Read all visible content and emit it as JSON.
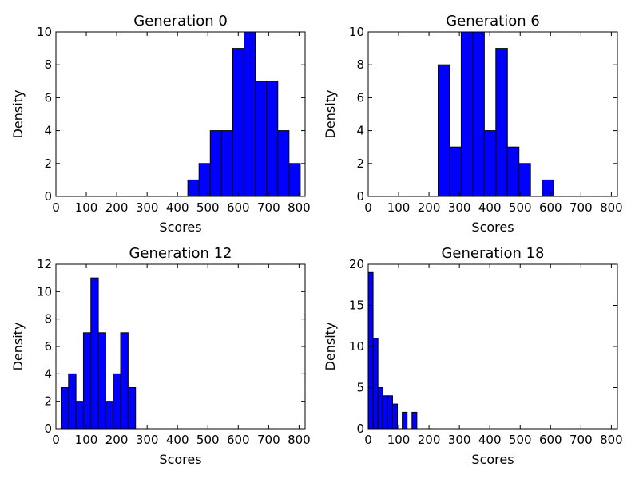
{
  "chart_data": [
    {
      "type": "bar",
      "title": "Generation 0",
      "xlabel": "Scores",
      "ylabel": "Density",
      "xlim": [
        0,
        820
      ],
      "ylim": [
        0,
        10
      ],
      "xticks": [
        0,
        100,
        200,
        300,
        400,
        500,
        600,
        700,
        800
      ],
      "yticks": [
        0,
        2,
        4,
        6,
        8,
        10
      ],
      "bin_width": 37,
      "bins": [
        {
          "x": 434,
          "value": 1
        },
        {
          "x": 471,
          "value": 2
        },
        {
          "x": 508,
          "value": 4
        },
        {
          "x": 545,
          "value": 4
        },
        {
          "x": 582,
          "value": 9
        },
        {
          "x": 619,
          "value": 10
        },
        {
          "x": 656,
          "value": 7
        },
        {
          "x": 693,
          "value": 7
        },
        {
          "x": 730,
          "value": 4
        },
        {
          "x": 767,
          "value": 2
        }
      ]
    },
    {
      "type": "bar",
      "title": "Generation 6",
      "xlabel": "Scores",
      "ylabel": "Density",
      "xlim": [
        0,
        820
      ],
      "ylim": [
        0,
        10
      ],
      "xticks": [
        0,
        100,
        200,
        300,
        400,
        500,
        600,
        700,
        800
      ],
      "yticks": [
        0,
        2,
        4,
        6,
        8,
        10
      ],
      "bin_width": 38,
      "bins": [
        {
          "x": 230,
          "value": 8
        },
        {
          "x": 268,
          "value": 3
        },
        {
          "x": 306,
          "value": 10
        },
        {
          "x": 344,
          "value": 10
        },
        {
          "x": 382,
          "value": 4
        },
        {
          "x": 420,
          "value": 9
        },
        {
          "x": 458,
          "value": 3
        },
        {
          "x": 496,
          "value": 2
        },
        {
          "x": 534,
          "value": 0
        },
        {
          "x": 572,
          "value": 1
        }
      ]
    },
    {
      "type": "bar",
      "title": "Generation 12",
      "xlabel": "Scores",
      "ylabel": "Density",
      "xlim": [
        0,
        820
      ],
      "ylim": [
        0,
        12
      ],
      "xticks": [
        0,
        100,
        200,
        300,
        400,
        500,
        600,
        700,
        800
      ],
      "yticks": [
        0,
        2,
        4,
        6,
        8,
        10,
        12
      ],
      "bin_width": 24.5,
      "bins": [
        {
          "x": 17,
          "value": 3
        },
        {
          "x": 41.5,
          "value": 4
        },
        {
          "x": 66,
          "value": 2
        },
        {
          "x": 90.5,
          "value": 7
        },
        {
          "x": 115,
          "value": 11
        },
        {
          "x": 139.5,
          "value": 7
        },
        {
          "x": 164,
          "value": 2
        },
        {
          "x": 188.5,
          "value": 4
        },
        {
          "x": 213,
          "value": 7
        },
        {
          "x": 237.5,
          "value": 3
        }
      ]
    },
    {
      "type": "bar",
      "title": "Generation 18",
      "xlabel": "Scores",
      "ylabel": "Density",
      "xlim": [
        0,
        820
      ],
      "ylim": [
        0,
        20
      ],
      "xticks": [
        0,
        100,
        200,
        300,
        400,
        500,
        600,
        700,
        800
      ],
      "yticks": [
        0,
        5,
        10,
        15,
        20
      ],
      "bin_width": 16,
      "bins": [
        {
          "x": 0,
          "value": 19
        },
        {
          "x": 16,
          "value": 11
        },
        {
          "x": 32,
          "value": 5
        },
        {
          "x": 48,
          "value": 4
        },
        {
          "x": 64,
          "value": 4
        },
        {
          "x": 80,
          "value": 3
        },
        {
          "x": 96,
          "value": 0
        },
        {
          "x": 112,
          "value": 2
        },
        {
          "x": 128,
          "value": 0
        },
        {
          "x": 144,
          "value": 2
        }
      ]
    }
  ]
}
